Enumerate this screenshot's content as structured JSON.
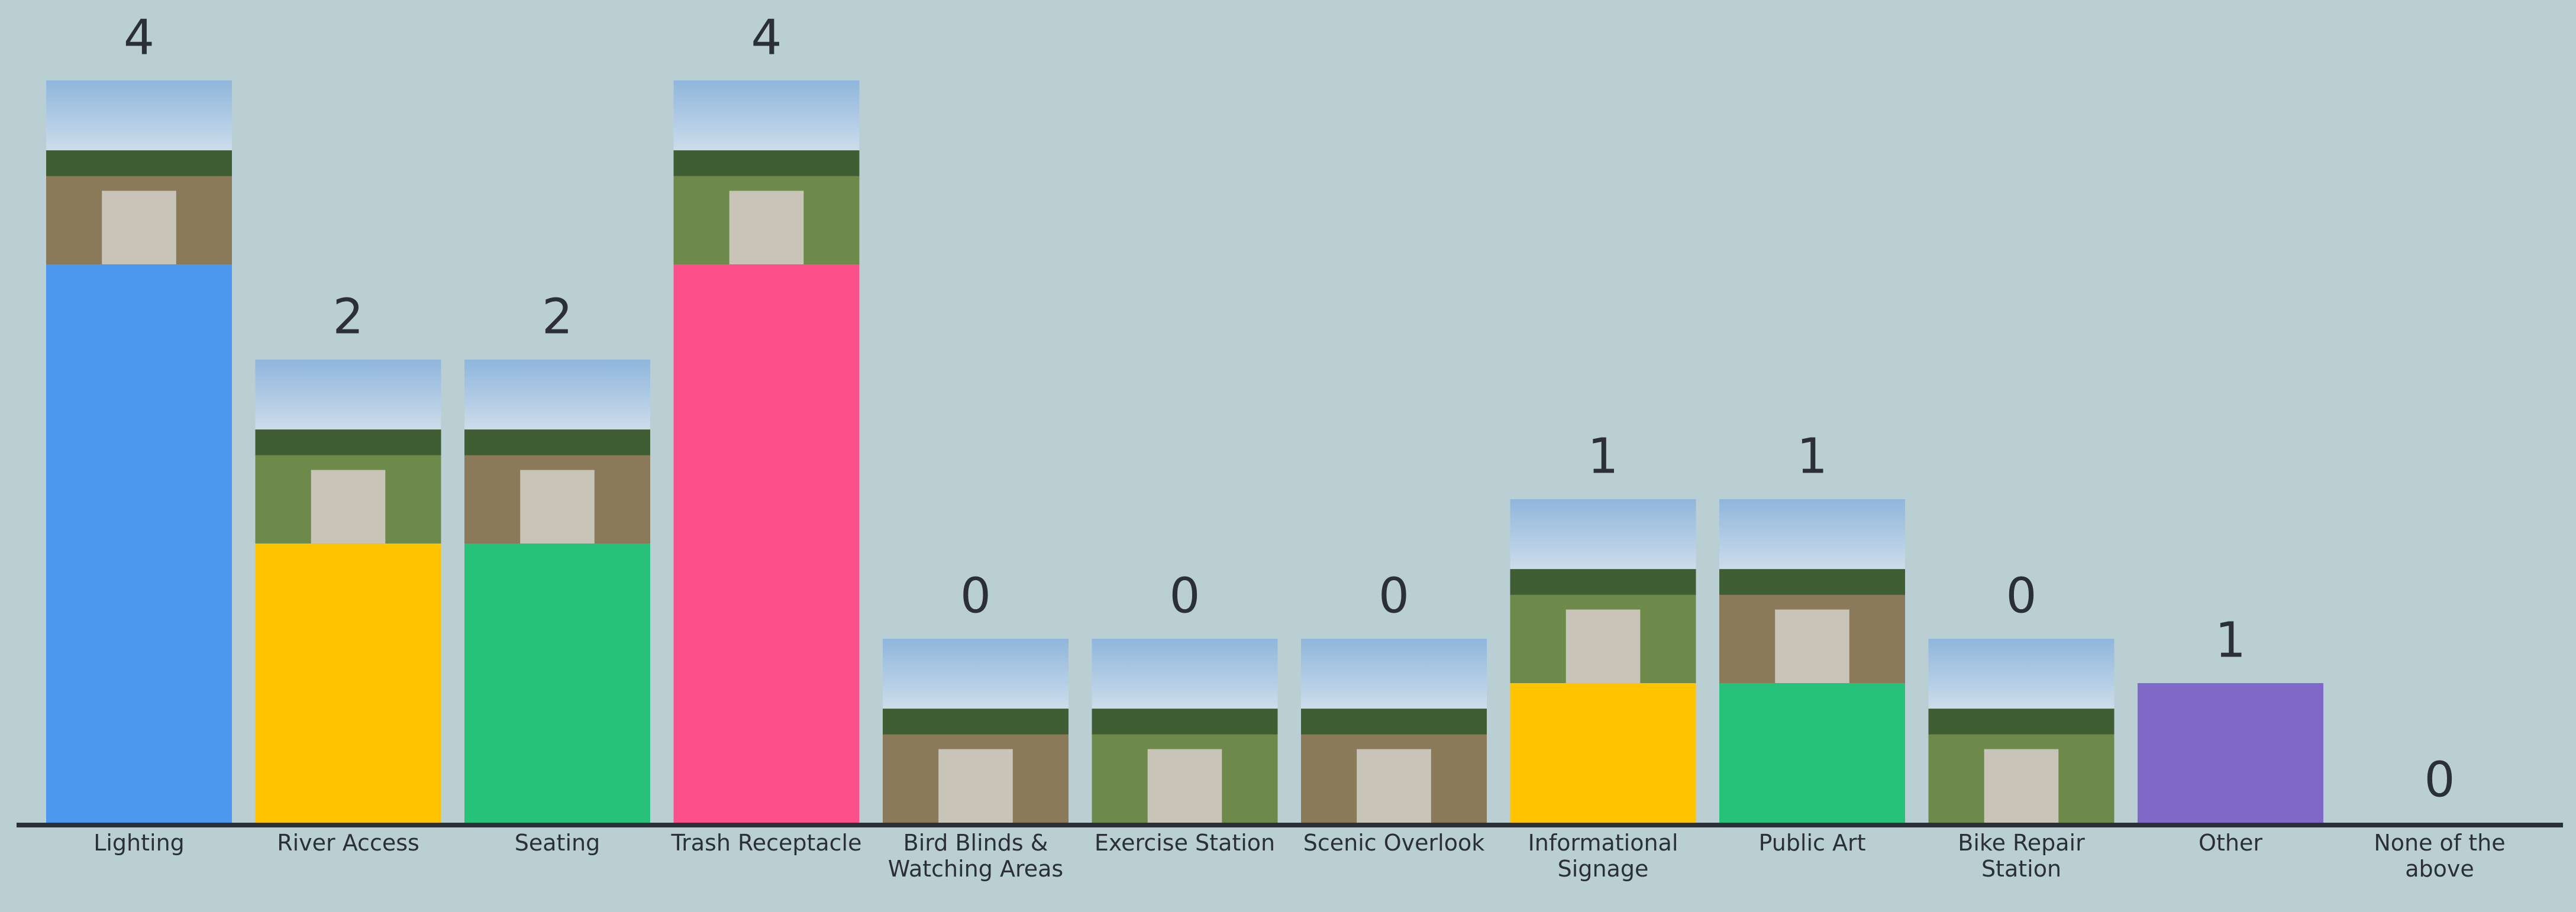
{
  "chart_data": {
    "type": "bar",
    "categories": [
      "Lighting",
      "River Access",
      "Seating",
      "Trash Receptacle",
      "Bird Blinds & Watching Areas",
      "Exercise Station",
      "Scenic Overlook",
      "Informational Signage",
      "Public Art",
      "Bike Repair Station",
      "Other",
      "None of the above"
    ],
    "values": [
      4,
      2,
      2,
      4,
      0,
      0,
      0,
      1,
      1,
      0,
      1,
      0
    ],
    "colors": [
      "#4c98ee",
      "#ffc400",
      "#26c27a",
      "#ff4f8a",
      "#7f68c8",
      "#2cb5c0",
      "#4c98ee",
      "#ffc400",
      "#26c27a",
      "#ff4f8a",
      "#7f68c8",
      "#2cb5c0"
    ],
    "photos": [
      true,
      true,
      true,
      true,
      true,
      true,
      true,
      true,
      true,
      true,
      false,
      false
    ]
  }
}
